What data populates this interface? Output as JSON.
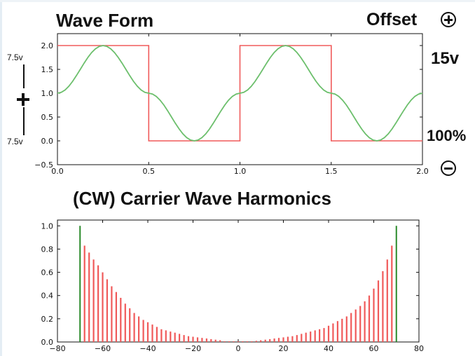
{
  "wave_title": "Wave Form",
  "offset_label": "Offset",
  "voltage_value": "15v",
  "percent_value": "100%",
  "voltage_top_label": "7.5v",
  "voltage_bottom_label": "7.5v",
  "harmonics_title": "(CW) Carrier Wave Harmonics",
  "icons": {
    "offset_increase": "plus-circle-icon",
    "offset_decrease": "minus-circle-icon",
    "amplitude": "plus-icon"
  },
  "colors": {
    "square_wave": "#f05a5a",
    "sine_wave": "#6cbf6c",
    "harmonic_bars": "#f05a5a",
    "carrier_lines": "#2a8a2a"
  },
  "chart_data": [
    {
      "type": "line",
      "title": "",
      "xlabel": "",
      "ylabel": "",
      "xlim": [
        0.0,
        2.0
      ],
      "ylim": [
        -0.5,
        2.25
      ],
      "x_ticks": [
        "0.0",
        "0.5",
        "1.0",
        "1.5",
        "2.0"
      ],
      "y_ticks": [
        "−0.5",
        "0.0",
        "0.5",
        "1.0",
        "1.5",
        "2.0"
      ],
      "x_tick_values": [
        0,
        0.5,
        1.0,
        1.5,
        2.0
      ],
      "y_tick_values": [
        -0.5,
        0,
        0.5,
        1.0,
        1.5,
        2.0
      ],
      "grid": false,
      "series": [
        {
          "kind": "square",
          "x": [
            0.0,
            0.5,
            0.5,
            1.0,
            1.0,
            1.5,
            1.5,
            2.0
          ],
          "y": [
            2.0,
            2.0,
            0.0,
            0.0,
            2.0,
            2.0,
            0.0,
            0.0
          ]
        },
        {
          "kind": "sine",
          "x": [
            0.0,
            0.25,
            0.5,
            0.75,
            1.0,
            1.25,
            1.5,
            1.75,
            2.0
          ],
          "y": [
            1.0,
            2.0,
            1.0,
            0.0,
            1.0,
            2.0,
            1.0,
            0.0,
            1.0
          ]
        }
      ]
    },
    {
      "type": "bar",
      "title": "(CW) Carrier Wave Harmonics",
      "xlabel": "",
      "ylabel": "",
      "xlim": [
        -80,
        80
      ],
      "ylim": [
        0.0,
        1.05
      ],
      "x_ticks": [
        "−80",
        "−60",
        "−40",
        "−20",
        "0",
        "20",
        "40",
        "60",
        "80"
      ],
      "y_ticks": [
        "0.0",
        "0.2",
        "0.4",
        "0.6",
        "0.8",
        "1.0"
      ],
      "x_tick_values": [
        -80,
        -60,
        -40,
        -20,
        0,
        20,
        40,
        60,
        80
      ],
      "y_tick_values": [
        0,
        0.2,
        0.4,
        0.6,
        0.8,
        1.0
      ],
      "grid": false,
      "carrier_lines": [
        {
          "x": -70,
          "y": 1.0
        },
        {
          "x": 70,
          "y": 1.0
        }
      ],
      "bars_right": {
        "x": [
          8,
          10,
          12,
          14,
          16,
          18,
          20,
          22,
          24,
          26,
          28,
          30,
          32,
          34,
          36,
          38,
          40,
          42,
          44,
          46,
          48,
          50,
          52,
          54,
          56,
          58,
          60,
          62,
          64,
          66,
          68
        ],
        "values": [
          0.01,
          0.015,
          0.02,
          0.025,
          0.03,
          0.035,
          0.04,
          0.045,
          0.05,
          0.06,
          0.07,
          0.08,
          0.09,
          0.1,
          0.11,
          0.12,
          0.14,
          0.16,
          0.18,
          0.2,
          0.22,
          0.25,
          0.28,
          0.31,
          0.35,
          0.4,
          0.46,
          0.53,
          0.61,
          0.71,
          0.83
        ]
      },
      "bars_left": {
        "x": [
          -68,
          -66,
          -64,
          -62,
          -60,
          -58,
          -56,
          -54,
          -52,
          -50,
          -48,
          -46,
          -44,
          -42,
          -40,
          -38,
          -36,
          -34,
          -32,
          -30,
          -28,
          -26,
          -24,
          -22,
          -20,
          -18,
          -16,
          -14,
          -12,
          -10,
          -8
        ],
        "values": [
          0.83,
          0.77,
          0.71,
          0.66,
          0.6,
          0.54,
          0.48,
          0.43,
          0.38,
          0.33,
          0.29,
          0.25,
          0.22,
          0.19,
          0.17,
          0.15,
          0.13,
          0.11,
          0.1,
          0.09,
          0.08,
          0.07,
          0.06,
          0.05,
          0.045,
          0.04,
          0.035,
          0.03,
          0.025,
          0.02,
          0.015
        ]
      }
    }
  ]
}
